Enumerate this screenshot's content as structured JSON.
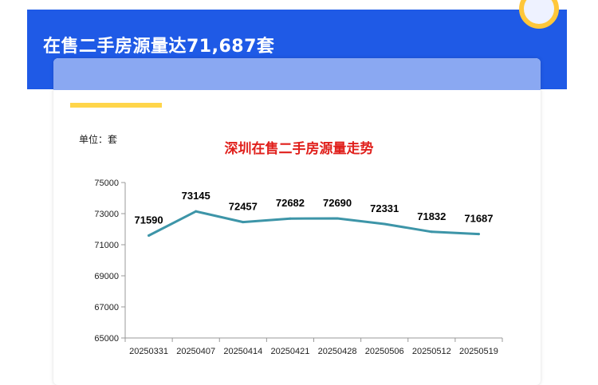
{
  "banner": {
    "title": "在售二手房源量达71,687套"
  },
  "chart_data": {
    "type": "line",
    "title": "深圳在售二手房源量走势",
    "unit_label": "单位：套",
    "categories": [
      "20250331",
      "20250407",
      "20250414",
      "20250421",
      "20250428",
      "20250506",
      "20250512",
      "20250519"
    ],
    "series": [
      {
        "values": [
          71590,
          73145,
          72457,
          72682,
          72690,
          72331,
          71832,
          71687
        ]
      }
    ],
    "data_labels": [
      "71590",
      "73145",
      "72457",
      "72682",
      "72690",
      "72331",
      "71832",
      "71687"
    ],
    "y_ticks": [
      "75000",
      "73000",
      "71000",
      "69000",
      "67000",
      "65000"
    ],
    "ylim": [
      65000,
      75000
    ],
    "grid": false,
    "line_color": "#3d95a8"
  }
}
